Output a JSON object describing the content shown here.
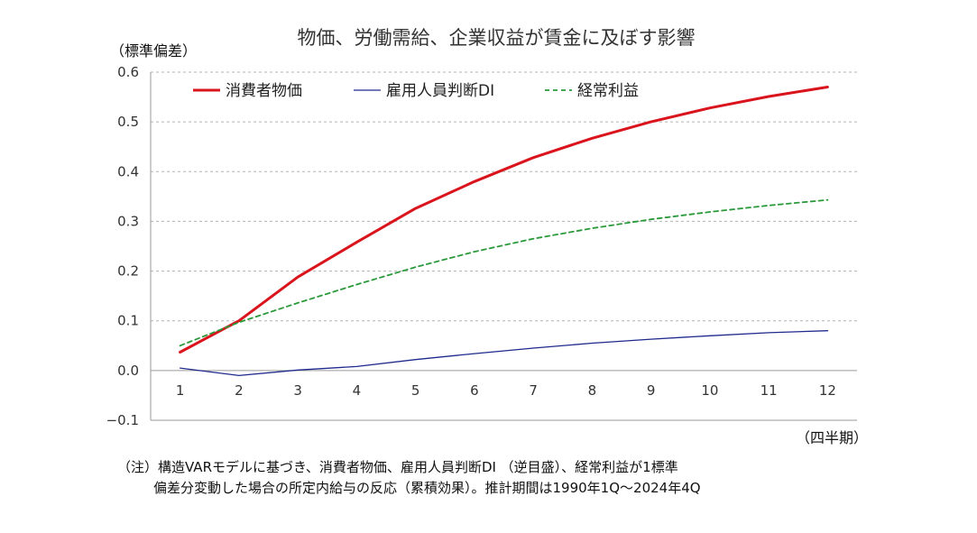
{
  "chart_data": {
    "type": "line",
    "title": "物価、労働需給、企業収益が賃金に及ぼす影響",
    "ylabel": "（標準偏差）",
    "xlabel": "（四半期）",
    "x": [
      1,
      2,
      3,
      4,
      5,
      6,
      7,
      8,
      9,
      10,
      11,
      12
    ],
    "ylim": [
      -0.1,
      0.6
    ],
    "yticks": [
      -0.1,
      0.0,
      0.1,
      0.2,
      0.3,
      0.4,
      0.5,
      0.6
    ],
    "ytick_labels": [
      "−0.1",
      "0.0",
      "0.1",
      "0.2",
      "0.3",
      "0.4",
      "0.5",
      "0.6"
    ],
    "grid": true,
    "legend_position": "top-left",
    "series": [
      {
        "name": "消費者物価",
        "color": "#d9141c",
        "style": "solid",
        "values": [
          0.037,
          0.1,
          0.188,
          0.258,
          0.326,
          0.38,
          0.428,
          0.467,
          0.5,
          0.528,
          0.551,
          0.57
        ]
      },
      {
        "name": "雇用人員判断DI",
        "color": "#1e2a8c",
        "style": "solid",
        "values": [
          0.005,
          -0.01,
          0.001,
          0.008,
          0.022,
          0.034,
          0.045,
          0.055,
          0.063,
          0.07,
          0.076,
          0.08
        ]
      },
      {
        "name": "経常利益",
        "color": "#2a9a3a",
        "style": "dashed",
        "values": [
          0.05,
          0.097,
          0.136,
          0.173,
          0.208,
          0.239,
          0.265,
          0.286,
          0.304,
          0.319,
          0.332,
          0.343
        ]
      }
    ]
  },
  "notes": {
    "line1": "（注）構造VARモデルに基づき、消費者物価、雇用人員判断DI （逆目盛）、経常利益が1標準",
    "line2": "偏差分変動した場合の所定内給与の反応（累積効果）。推計期間は1990年1Q～2024年4Q"
  }
}
